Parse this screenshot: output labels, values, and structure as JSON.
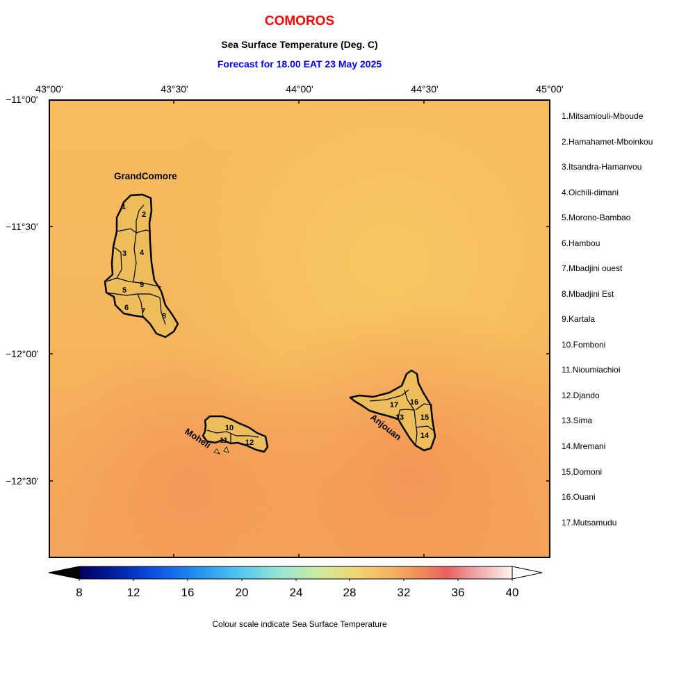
{
  "header": {
    "country": "COMOROS",
    "subtitle": "Sea Surface Temperature (Deg. C)",
    "forecast": "Forecast for  18.00 EAT 23 May 2025"
  },
  "axes": {
    "lon_labels": [
      "43°00'",
      "43°30'",
      "44°00'",
      "44°30'",
      "45°00'"
    ],
    "lat_labels": [
      "−11°00'",
      "−11°30'",
      "−12°00'",
      "−12°30'"
    ]
  },
  "islands": {
    "grand_comore": "GrandComore",
    "moheli": "Moheli",
    "anjouan": "Anjouan"
  },
  "region_numbers": [
    "1",
    "2",
    "3",
    "4",
    "5",
    "6",
    "7",
    "8",
    "9",
    "10",
    "11",
    "12",
    "13",
    "14",
    "15",
    "16",
    "17"
  ],
  "regions": [
    "1.Mitsamiouli-Mboude",
    "2.Hamahamet-Mboinkou",
    "3.Itsandra-Hamanvou",
    "4.Oichili-dimani",
    "5.Morono-Bambao",
    "6.Hambou",
    "7.Mbadjini ouest",
    "8.Mbadjini Est",
    "9.Kartala",
    "10.Fomboni",
    "11.Nioumiachioi",
    "12.Djando",
    "13.Sima",
    "14.Mremani",
    "15.Domoni",
    "16.Ouani",
    "17.Mutsamudu"
  ],
  "colorbar": {
    "ticks": [
      "8",
      "12",
      "16",
      "20",
      "24",
      "28",
      "32",
      "36",
      "40"
    ],
    "min": 8,
    "max": 40
  },
  "caption": "Colour scale indicate Sea Surface Temperature",
  "colors": {
    "sea_warm": "#f6b560",
    "sea_cool": "#f8c762",
    "sea_hot": "#f49a58",
    "land": "#ecbd5a",
    "title_red": "#ff0000",
    "forecast_blue": "#0000ff"
  }
}
